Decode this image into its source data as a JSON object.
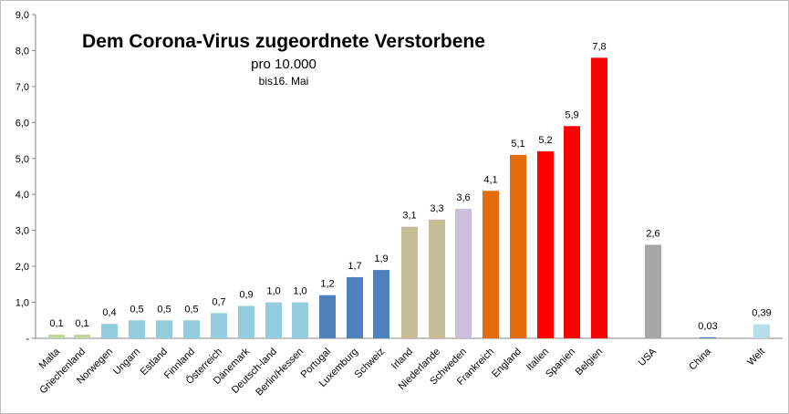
{
  "chart_data": {
    "type": "bar",
    "title": "Dem Corona-Virus zugeordnete Verstorbene",
    "subtitle": "pro 10.000",
    "note": "bis16. Mai",
    "ylim": [
      0,
      9
    ],
    "y_ticks": [
      "-",
      "1,0",
      "2,0",
      "3,0",
      "4,0",
      "5,0",
      "6,0",
      "7,0",
      "8,0",
      "9,0"
    ],
    "grid": false,
    "categories": [
      "Malta",
      "Griechenland",
      "Norwegen",
      "Ungarn",
      "Estland",
      "Finnland",
      "Österreich",
      "Dänemark",
      "Deutsch-land",
      "Berlin/Hessen",
      "Portugal",
      "Luxemburg",
      "Schweiz",
      "Irland",
      "Niederlande",
      "Schweden",
      "Frankreich",
      "England",
      "Italien",
      "Spanien",
      "Belgien",
      "USA",
      "China",
      "Welt"
    ],
    "values": [
      0.1,
      0.1,
      0.4,
      0.5,
      0.5,
      0.5,
      0.7,
      0.9,
      1.0,
      1.0,
      1.2,
      1.7,
      1.9,
      3.1,
      3.3,
      3.6,
      4.1,
      5.1,
      5.2,
      5.9,
      7.8,
      2.6,
      0.03,
      0.39
    ],
    "data_labels": [
      "0,1",
      "0,1",
      "0,4",
      "0,5",
      "0,5",
      "0,5",
      "0,7",
      "0,9",
      "1,0",
      "1,0",
      "1,2",
      "1,7",
      "1,9",
      "3,1",
      "3,3",
      "3,6",
      "4,1",
      "5,1",
      "5,2",
      "5,9",
      "7,8",
      "2,6",
      "0,03",
      "0,39"
    ],
    "colors": [
      "#c3d69b",
      "#c3d69b",
      "#93cddd",
      "#93cddd",
      "#93cddd",
      "#93cddd",
      "#93cddd",
      "#93cddd",
      "#93cddd",
      "#93cddd",
      "#4f81bd",
      "#4f81bd",
      "#4f81bd",
      "#c4bd97",
      "#c4bd97",
      "#ccc1da",
      "#e46c0a",
      "#e46c0a",
      "#ff0000",
      "#ff0000",
      "#ff0000",
      "#a6a6a6",
      "#4f81bd",
      "#b7dee8"
    ]
  }
}
